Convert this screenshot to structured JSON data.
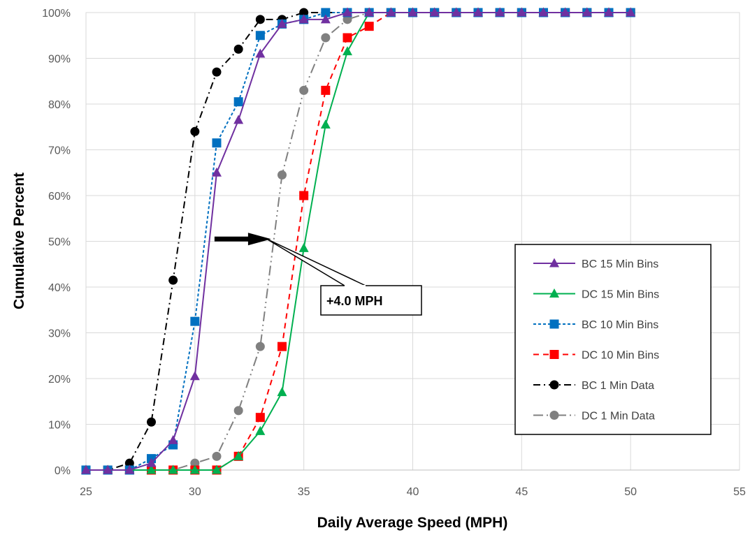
{
  "chart_data": {
    "type": "line",
    "title": "",
    "xlabel": "Daily Average Speed (MPH)",
    "ylabel": "Cumulative Percent",
    "xlim": [
      25,
      55
    ],
    "ylim": [
      0,
      100
    ],
    "xticks": [
      25,
      30,
      35,
      40,
      45,
      50,
      55
    ],
    "xtick_labels": [
      "25",
      "30",
      "35",
      "40",
      "45",
      "50",
      "55"
    ],
    "yticks": [
      0,
      10,
      20,
      30,
      40,
      50,
      60,
      70,
      80,
      90,
      100
    ],
    "ytick_labels": [
      "0%",
      "10%",
      "20%",
      "30%",
      "40%",
      "50%",
      "60%",
      "70%",
      "80%",
      "90%",
      "100%"
    ],
    "grid": true,
    "legend_position": "right",
    "x": [
      25,
      26,
      27,
      28,
      29,
      30,
      31,
      32,
      33,
      34,
      35,
      36,
      37,
      38,
      39,
      40,
      41,
      42,
      43,
      44,
      45,
      46,
      47,
      48,
      49,
      50
    ],
    "series": [
      {
        "name": "BC 15 Min Bins",
        "color": "#7030A0",
        "marker": "triangle",
        "dash": "solid",
        "values": [
          0,
          0,
          0,
          1.5,
          6.5,
          20.5,
          65,
          76.5,
          91,
          97.5,
          98.5,
          98.5,
          100,
          100,
          100,
          100,
          100,
          100,
          100,
          100,
          100,
          100,
          100,
          100,
          100,
          100
        ]
      },
      {
        "name": "DC 15 Min Bins",
        "color": "#00B050",
        "marker": "triangle",
        "dash": "solid",
        "values": [
          0,
          0,
          0,
          0,
          0,
          0,
          0,
          3,
          8.5,
          17,
          48.5,
          75.5,
          91.5,
          100,
          100,
          100,
          100,
          100,
          100,
          100,
          100,
          100,
          100,
          100,
          100,
          100
        ]
      },
      {
        "name": "BC 10 Min Bins",
        "color": "#0070C0",
        "marker": "square",
        "dash": "short-dash",
        "values": [
          0,
          0,
          0,
          2.5,
          5.5,
          32.5,
          71.5,
          80.5,
          95,
          97.5,
          98.5,
          100,
          100,
          100,
          100,
          100,
          100,
          100,
          100,
          100,
          100,
          100,
          100,
          100,
          100,
          100
        ]
      },
      {
        "name": "DC 10 Min Bins",
        "color": "#FF0000",
        "marker": "square",
        "dash": "dash",
        "values": [
          0,
          0,
          0,
          0,
          0,
          0,
          0,
          3,
          11.5,
          27,
          60,
          83,
          94.5,
          97,
          100,
          100,
          100,
          100,
          100,
          100,
          100,
          100,
          100,
          100,
          100,
          100
        ]
      },
      {
        "name": "BC 1 Min Data",
        "color": "#000000",
        "marker": "circle",
        "dash": "dash-dot",
        "values": [
          0,
          0,
          1.5,
          10.5,
          41.5,
          74,
          87,
          92,
          98.5,
          98.5,
          100,
          100,
          100,
          100,
          100,
          100,
          100,
          100,
          100,
          100,
          100,
          100,
          100,
          100,
          100,
          100
        ]
      },
      {
        "name": "DC 1 Min Data",
        "color": "#808080",
        "marker": "circle",
        "dash": "long-dash-dot-dot",
        "values": [
          0,
          0,
          0,
          0,
          0,
          1.5,
          3,
          13,
          27,
          64.5,
          83,
          94.5,
          98.5,
          100,
          100,
          100,
          100,
          100,
          100,
          100,
          100,
          100,
          100,
          100,
          100,
          100
        ]
      }
    ],
    "annotation": {
      "text": "+4.0 MPH",
      "arrow_from": [
        30.9,
        50.5
      ],
      "arrow_to": [
        33.5,
        50.5
      ],
      "label_at": [
        37.5,
        36.5
      ]
    }
  }
}
